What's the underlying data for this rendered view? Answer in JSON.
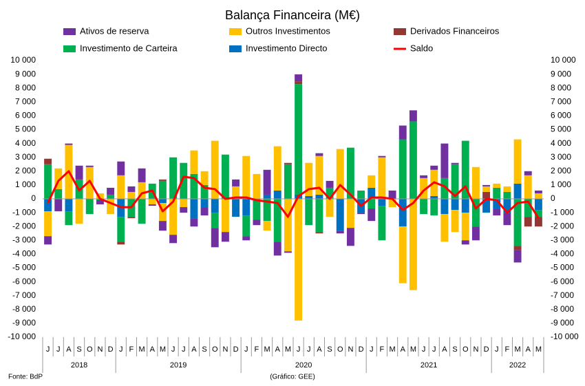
{
  "chart_data": {
    "type": "bar",
    "stacked": true,
    "title": "Balança Financeira (M€)",
    "source": "Fonte: BdP",
    "note": "(Gráfico: GEE)",
    "category_groups": [
      {
        "label": "2018",
        "categories": [
          "J",
          "J",
          "A",
          "S",
          "O",
          "N",
          "D"
        ]
      },
      {
        "label": "2019",
        "categories": [
          "J",
          "F",
          "M",
          "A",
          "M",
          "J",
          "J",
          "A",
          "S",
          "O",
          "N",
          "D"
        ]
      },
      {
        "label": "2020",
        "categories": [
          "J",
          "F",
          "M",
          "A",
          "M",
          "J",
          "J",
          "A",
          "S",
          "O",
          "N",
          "D"
        ]
      },
      {
        "label": "2021",
        "categories": [
          "J",
          "F",
          "M",
          "A",
          "M",
          "J",
          "J",
          "A",
          "S",
          "O",
          "N",
          "D"
        ]
      },
      {
        "label": "2022",
        "categories": [
          "J",
          "F",
          "M",
          "A",
          "M"
        ]
      }
    ],
    "series": [
      {
        "name": "Investimento Directo",
        "color": "#0070c0",
        "values": [
          -900,
          0,
          -900,
          0,
          0,
          0,
          0,
          -1300,
          0,
          0,
          0,
          -300,
          0,
          0,
          -1400,
          -600,
          -1000,
          0,
          -1300,
          -1200,
          0,
          300,
          600,
          0,
          300,
          200,
          300,
          0,
          -2300,
          0,
          -1000,
          800,
          -500,
          0,
          -2000,
          0,
          0,
          200,
          -1100,
          -800,
          -1000,
          0,
          -1000,
          -700,
          -1000,
          1100,
          0,
          -800
        ]
      },
      {
        "name": "Investimento de Carteira",
        "color": "#00b050",
        "values": [
          2500,
          700,
          -1000,
          1400,
          -1100,
          -100,
          300,
          -1800,
          -1300,
          -1800,
          1100,
          1300,
          3000,
          2600,
          1800,
          1000,
          -1100,
          3200,
          0,
          -1500,
          -1500,
          -1600,
          -3100,
          2500,
          8000,
          -1900,
          -2400,
          800,
          0,
          3700,
          600,
          -700,
          -2500,
          0,
          4300,
          5600,
          -1100,
          -1200,
          1500,
          2500,
          4200,
          -2000,
          0,
          800,
          500,
          -3400,
          -1300,
          -500
        ]
      },
      {
        "name": "Derivados Financeiros",
        "color": "#943634",
        "values": [
          400,
          0,
          0,
          0,
          0,
          0,
          0,
          -200,
          -100,
          0,
          0,
          100,
          0,
          0,
          0,
          0,
          0,
          0,
          0,
          0,
          0,
          0,
          0,
          100,
          200,
          0,
          -100,
          0,
          0,
          0,
          0,
          0,
          0,
          0,
          0,
          0,
          0,
          0,
          0,
          0,
          0,
          0,
          500,
          0,
          0,
          -300,
          -700,
          -700
        ]
      },
      {
        "name": "Outros Investimentos",
        "color": "#ffc000",
        "values": [
          -1800,
          1500,
          3900,
          -1800,
          2300,
          400,
          -1100,
          1700,
          500,
          1200,
          -400,
          -1300,
          -2600,
          -600,
          1700,
          1000,
          4200,
          -2400,
          900,
          3100,
          1800,
          -700,
          3200,
          -3800,
          -8800,
          2400,
          2800,
          -1300,
          3600,
          -2100,
          0,
          900,
          3000,
          -600,
          -4100,
          -6600,
          1500,
          1900,
          -2000,
          -1600,
          -2000,
          2300,
          400,
          300,
          400,
          3200,
          1700,
          400
        ]
      },
      {
        "name": "Ativos de reserva",
        "color": "#7030a0",
        "values": [
          -600,
          -900,
          100,
          1000,
          100,
          -300,
          500,
          1000,
          400,
          1000,
          -100,
          -700,
          -600,
          -400,
          -600,
          -600,
          -1400,
          -700,
          500,
          -300,
          -400,
          1800,
          -1000,
          -100,
          500,
          0,
          200,
          500,
          -200,
          -1300,
          -100,
          -900,
          100,
          600,
          1000,
          800,
          200,
          300,
          2500,
          100,
          -300,
          -1000,
          100,
          -500,
          -900,
          -900,
          300,
          200
        ]
      },
      {
        "name": "Saldo",
        "color": "#ff0000",
        "type": "line",
        "values": [
          -300,
          1300,
          2000,
          600,
          1300,
          0,
          -300,
          -600,
          -600,
          400,
          600,
          -900,
          -200,
          1600,
          1500,
          800,
          700,
          0,
          100,
          100,
          -100,
          -200,
          -300,
          -1300,
          200,
          700,
          800,
          0,
          1000,
          300,
          -500,
          100,
          100,
          0,
          -800,
          -300,
          600,
          1200,
          900,
          200,
          900,
          -700,
          0,
          -100,
          -1000,
          -300,
          -200,
          -1400
        ]
      }
    ],
    "ylim": [
      -10000,
      10000
    ],
    "yticks": [
      {
        "value": -10000,
        "label": "-10 000"
      },
      {
        "value": -9000,
        "label": "-9 000"
      },
      {
        "value": -8000,
        "label": "-8 000"
      },
      {
        "value": -7000,
        "label": "-7 000"
      },
      {
        "value": -6000,
        "label": "-6 000"
      },
      {
        "value": -5000,
        "label": "-5 000"
      },
      {
        "value": -4000,
        "label": "-4 000"
      },
      {
        "value": -3000,
        "label": "-3 000"
      },
      {
        "value": -2000,
        "label": "-2 000"
      },
      {
        "value": -1000,
        "label": "-1 000"
      },
      0,
      {
        "value": 1000,
        "label": "1 000"
      },
      {
        "value": 2000,
        "label": "2 000"
      },
      {
        "value": 3000,
        "label": "3 000"
      },
      {
        "value": 4000,
        "label": "4 000"
      },
      {
        "value": 5000,
        "label": "5 000"
      },
      {
        "value": 6000,
        "label": "6 000"
      },
      {
        "value": 7000,
        "label": "7 000"
      },
      {
        "value": 8000,
        "label": "8 000"
      },
      {
        "value": 9000,
        "label": "9 000"
      },
      {
        "value": 10000,
        "label": "10 000"
      }
    ],
    "grid": false
  }
}
